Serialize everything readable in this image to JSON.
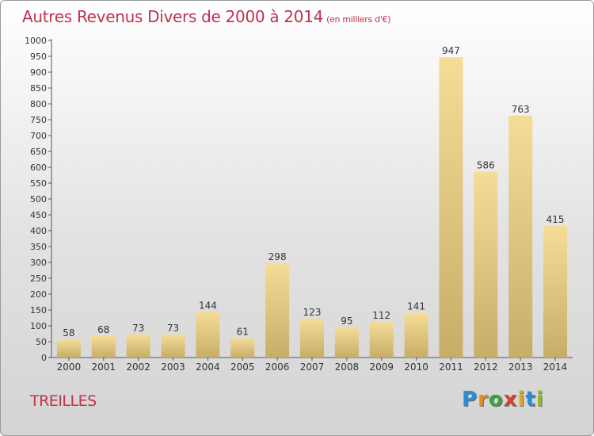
{
  "title": "Autres Revenus Divers de 2000 à 2014",
  "unit_note": "(en milliers d'€)",
  "place": "TREILLES",
  "logo": {
    "letters": [
      "P",
      "r",
      "o",
      "x",
      "i",
      "t",
      "i"
    ],
    "colors": [
      "#2a8fd6",
      "#e8892a",
      "#3aa33a",
      "#d9402f",
      "#e0a81e",
      "#2a8fd6",
      "#8cbf26"
    ]
  },
  "colors": {
    "bar_top": "#f5dd97",
    "bar_bottom": "#c8ad68",
    "accent": "#c0334f"
  },
  "chart_data": {
    "type": "bar",
    "categories": [
      "2000",
      "2001",
      "2002",
      "2003",
      "2004",
      "2005",
      "2006",
      "2007",
      "2008",
      "2009",
      "2010",
      "2011",
      "2012",
      "2013",
      "2014"
    ],
    "values": [
      58,
      68,
      73,
      73,
      144,
      61,
      298,
      123,
      95,
      112,
      141,
      947,
      586,
      763,
      415
    ],
    "ylim": [
      0,
      1000
    ],
    "yticks": [
      0,
      50,
      100,
      150,
      200,
      250,
      300,
      350,
      400,
      450,
      500,
      550,
      600,
      650,
      700,
      750,
      800,
      850,
      900,
      950,
      1000
    ],
    "grid": false,
    "data_labels": true
  }
}
